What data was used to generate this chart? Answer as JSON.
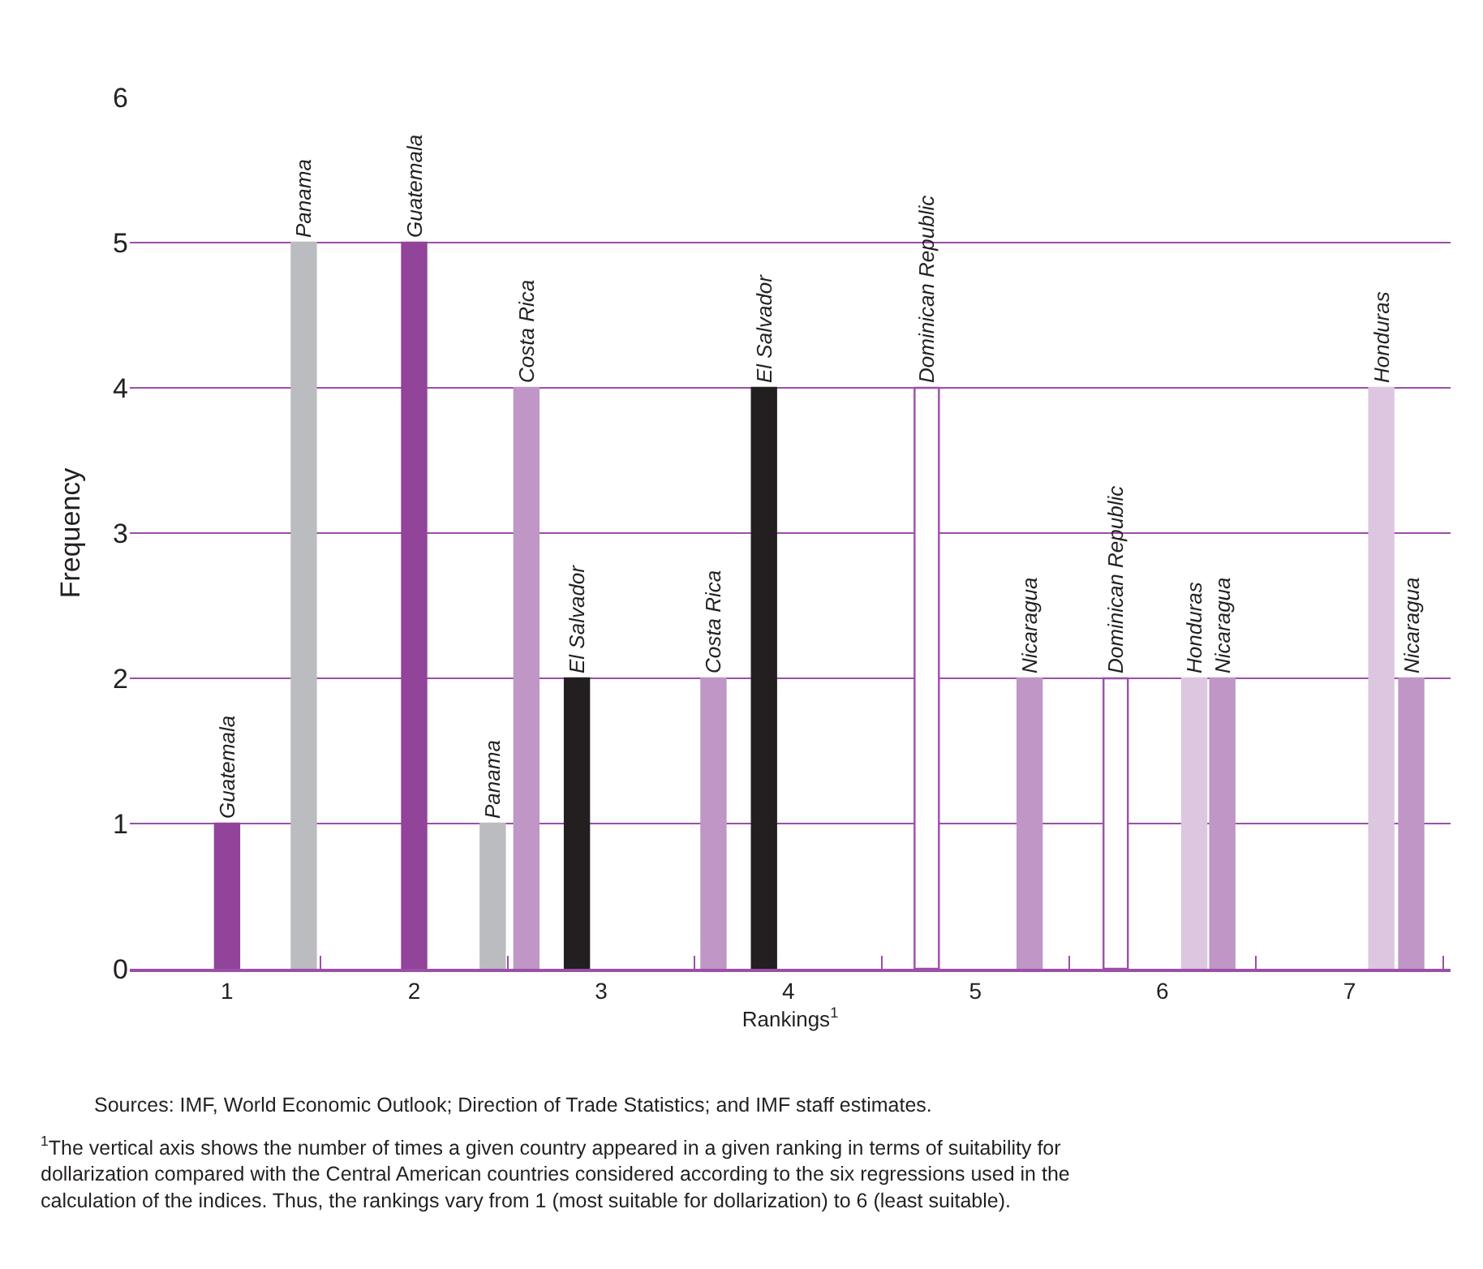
{
  "chart_data": {
    "type": "bar",
    "xlabel": "Rankings$^{1}$",
    "ylabel": "Frequency",
    "xlim": [
      0.48,
      7.54
    ],
    "xticks": [
      1,
      2,
      3,
      4,
      5,
      6,
      7,
      {
        "value": 1.5,
        "label": null
      },
      {
        "value": 2.5,
        "label": null
      },
      {
        "value": 3.5,
        "label": null
      },
      {
        "value": 4.5,
        "label": null
      },
      {
        "value": 5.5,
        "label": null
      },
      {
        "value": 6.5,
        "label": null
      },
      {
        "value": 7.5,
        "label": null
      }
    ],
    "ylim": [
      0,
      6
    ],
    "yticks": [
      0,
      1,
      2,
      3,
      4,
      5,
      6
    ],
    "grid": "y",
    "legend": false,
    "series": [
      {
        "name": "Guatemala",
        "color": "#92439a",
        "x": [
          1.0,
          2.0
        ],
        "values": [
          1,
          5
        ]
      },
      {
        "name": "Panama",
        "color": "#bbbcbf",
        "x": [
          1.41,
          2.42
        ],
        "values": [
          5,
          1
        ]
      },
      {
        "name": "Costa Rica",
        "color": "#bf96c6",
        "x": [
          2.6,
          3.6
        ],
        "values": [
          4,
          2
        ]
      },
      {
        "name": "El Salvador",
        "color": "#231f20",
        "x": [
          2.87,
          3.87
        ],
        "values": [
          2,
          4
        ]
      },
      {
        "name": "Dominican Republic",
        "color": "#ffffff",
        "x": [
          4.74,
          5.75
        ],
        "values": [
          4,
          2
        ]
      },
      {
        "name": "Nicaragua",
        "color": "#bf96c6",
        "x": [
          5.29,
          6.32,
          7.33
        ],
        "values": [
          2,
          2,
          2
        ]
      },
      {
        "name": "Honduras",
        "color": "#dcc6e0",
        "x": [
          6.17,
          7.17
        ],
        "values": [
          2,
          4
        ]
      }
    ],
    "annotations": [
      "Sources: IMF, World Economic Outlook; Direction of Trade Statistics; and IMF staff estimates.",
      "$^{1}$The vertical axis shows the number of times a given country appeared in a given ranking in terms of suitability for dollarization compared with the Central American countries considered according to the six regressions used in the calculation of the indices. Thus, the rankings vary from 1 (most suitable for dollarization) to 6 (least suitable)."
    ]
  }
}
